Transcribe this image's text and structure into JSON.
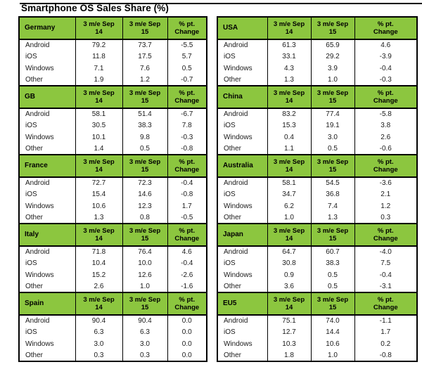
{
  "page": {
    "title": "Smartphone OS Sales Share (%)"
  },
  "colors": {
    "header_green": "#8cc63f",
    "border": "#000000",
    "text": "#1a1a1a"
  },
  "column_headers": [
    "3 m/e Sep\n14",
    "3 m/e Sep\n15",
    "% pt.\nChange"
  ],
  "os_labels": [
    "Android",
    "iOS",
    "Windows",
    "Other"
  ],
  "tables": [
    {
      "name": "Germany",
      "side": "left",
      "rows": [
        {
          "os": "Android",
          "values": [
            "79.2",
            "73.7",
            "-5.5"
          ]
        },
        {
          "os": "iOS",
          "values": [
            "11.8",
            "17.5",
            "5.7"
          ]
        },
        {
          "os": "Windows",
          "values": [
            "7.1",
            "7.6",
            "0.5"
          ]
        },
        {
          "os": "Other",
          "values": [
            "1.9",
            "1.2",
            "-0.7"
          ]
        }
      ]
    },
    {
      "name": "GB",
      "side": "left",
      "rows": [
        {
          "os": "Android",
          "values": [
            "58.1",
            "51.4",
            "-6.7"
          ]
        },
        {
          "os": "iOS",
          "values": [
            "30.5",
            "38.3",
            "7.8"
          ]
        },
        {
          "os": "Windows",
          "values": [
            "10.1",
            "9.8",
            "-0.3"
          ]
        },
        {
          "os": "Other",
          "values": [
            "1.4",
            "0.5",
            "-0.8"
          ]
        }
      ]
    },
    {
      "name": "France",
      "side": "left",
      "rows": [
        {
          "os": "Android",
          "values": [
            "72.7",
            "72.3",
            "-0.4"
          ]
        },
        {
          "os": "iOS",
          "values": [
            "15.4",
            "14.6",
            "-0.8"
          ]
        },
        {
          "os": "Windows",
          "values": [
            "10.6",
            "12.3",
            "1.7"
          ]
        },
        {
          "os": "Other",
          "values": [
            "1.3",
            "0.8",
            "-0.5"
          ]
        }
      ]
    },
    {
      "name": "Italy",
      "side": "left",
      "rows": [
        {
          "os": "Android",
          "values": [
            "71.8",
            "76.4",
            "4.6"
          ]
        },
        {
          "os": "iOS",
          "values": [
            "10.4",
            "10.0",
            "-0.4"
          ]
        },
        {
          "os": "Windows",
          "values": [
            "15.2",
            "12.6",
            "-2.6"
          ]
        },
        {
          "os": "Other",
          "values": [
            "2.6",
            "1.0",
            "-1.6"
          ]
        }
      ]
    },
    {
      "name": "Spain",
      "side": "left",
      "rows": [
        {
          "os": "Android",
          "values": [
            "90.4",
            "90.4",
            "0.0"
          ]
        },
        {
          "os": "iOS",
          "values": [
            "6.3",
            "6.3",
            "0.0"
          ]
        },
        {
          "os": "Windows",
          "values": [
            "3.0",
            "3.0",
            "0.0"
          ]
        },
        {
          "os": "Other",
          "values": [
            "0.3",
            "0.3",
            "0.0"
          ]
        }
      ]
    },
    {
      "name": "USA",
      "side": "right",
      "rows": [
        {
          "os": "Android",
          "values": [
            "61.3",
            "65.9",
            "4.6"
          ]
        },
        {
          "os": "iOS",
          "values": [
            "33.1",
            "29.2",
            "-3.9"
          ]
        },
        {
          "os": "Windows",
          "values": [
            "4.3",
            "3.9",
            "-0.4"
          ]
        },
        {
          "os": "Other",
          "values": [
            "1.3",
            "1.0",
            "-0.3"
          ]
        }
      ]
    },
    {
      "name": "China",
      "side": "right",
      "rows": [
        {
          "os": "Android",
          "values": [
            "83.2",
            "77.4",
            "-5.8"
          ]
        },
        {
          "os": "iOS",
          "values": [
            "15.3",
            "19.1",
            "3.8"
          ]
        },
        {
          "os": "Windows",
          "values": [
            "0.4",
            "3.0",
            "2.6"
          ]
        },
        {
          "os": "Other",
          "values": [
            "1.1",
            "0.5",
            "-0.6"
          ]
        }
      ]
    },
    {
      "name": "Australia",
      "side": "right",
      "rows": [
        {
          "os": "Android",
          "values": [
            "58.1",
            "54.5",
            "-3.6"
          ]
        },
        {
          "os": "iOS",
          "values": [
            "34.7",
            "36.8",
            "2.1"
          ]
        },
        {
          "os": "Windows",
          "values": [
            "6.2",
            "7.4",
            "1.2"
          ]
        },
        {
          "os": "Other",
          "values": [
            "1.0",
            "1.3",
            "0.3"
          ]
        }
      ]
    },
    {
      "name": "Japan",
      "side": "right",
      "rows": [
        {
          "os": "Android",
          "values": [
            "64.7",
            "60.7",
            "-4.0"
          ]
        },
        {
          "os": "iOS",
          "values": [
            "30.8",
            "38.3",
            "7.5"
          ]
        },
        {
          "os": "Windows",
          "values": [
            "0.9",
            "0.5",
            "-0.4"
          ]
        },
        {
          "os": "Other",
          "values": [
            "3.6",
            "0.5",
            "-3.1"
          ]
        }
      ]
    },
    {
      "name": "EU5",
      "side": "right",
      "rows": [
        {
          "os": "Android",
          "values": [
            "75.1",
            "74.0",
            "-1.1"
          ]
        },
        {
          "os": "iOS",
          "values": [
            "12.7",
            "14.4",
            "1.7"
          ]
        },
        {
          "os": "Windows",
          "values": [
            "10.3",
            "10.6",
            "0.2"
          ]
        },
        {
          "os": "Other",
          "values": [
            "1.8",
            "1.0",
            "-0.8"
          ]
        }
      ]
    }
  ]
}
